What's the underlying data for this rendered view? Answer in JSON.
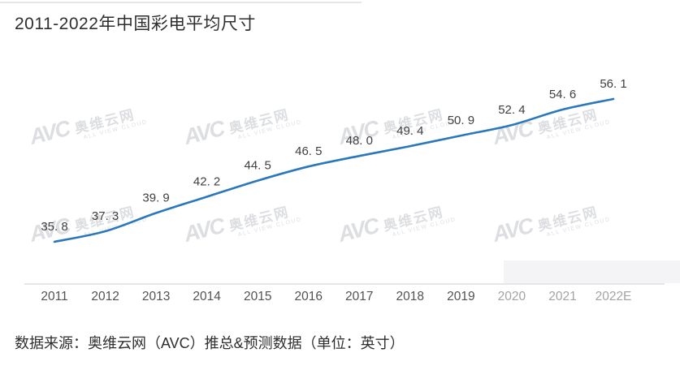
{
  "page": {
    "title": "2011-2022年中国彩电平均尺寸",
    "source_note": "数据来源：奥维云网（AVC）推总&预测数据（单位：英寸）"
  },
  "watermark": {
    "logo": "AVC",
    "name": "奥维云网",
    "subtext": "ALL VIEW CLOUD"
  },
  "chart_data": {
    "type": "line",
    "title": "2011-2022年中国彩电平均尺寸",
    "categories": [
      "2011",
      "2012",
      "2013",
      "2014",
      "2015",
      "2016",
      "2017",
      "2018",
      "2019",
      "2020",
      "2021",
      "2022E"
    ],
    "values": [
      35.8,
      37.3,
      39.9,
      42.2,
      44.5,
      46.5,
      48.0,
      49.4,
      50.9,
      52.4,
      54.6,
      56.1
    ],
    "value_labels": [
      "35. 8",
      "37. 3",
      "39. 9",
      "42. 2",
      "44. 5",
      "46. 5",
      "48. 0",
      "49. 4",
      "50. 9",
      "52. 4",
      "54. 6",
      "56. 1"
    ],
    "unit": "英寸",
    "ylim": [
      34,
      58
    ],
    "grid": false,
    "legend": "none",
    "line_color": "#2a77bb",
    "label_color": "#3f3f3f",
    "axis_color": "#dddddd",
    "faded_tick_indices": [
      9,
      10,
      11
    ]
  }
}
